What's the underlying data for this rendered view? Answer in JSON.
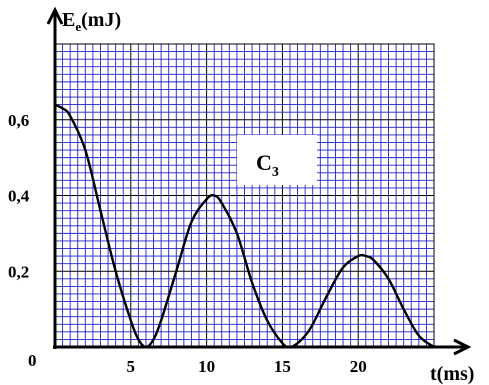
{
  "chart_data": {
    "type": "line",
    "xlabel": "t(ms)",
    "ylabel_main": "E",
    "ylabel_sub": "e",
    "ylabel_unit": "(mJ)",
    "annotation_main": "C",
    "annotation_sub": "3",
    "origin_label": "0",
    "xlim": [
      0,
      25
    ],
    "ylim": [
      0,
      0.8
    ],
    "x_ticks": [
      {
        "value": 5,
        "label": "5"
      },
      {
        "value": 10,
        "label": "10"
      },
      {
        "value": 15,
        "label": "15"
      },
      {
        "value": 20,
        "label": "20"
      }
    ],
    "y_ticks": [
      {
        "value": 0.2,
        "label": "0,2"
      },
      {
        "value": 0.4,
        "label": "0,4"
      },
      {
        "value": 0.6,
        "label": "0,6"
      }
    ],
    "grid": true,
    "series": [
      {
        "x": [
          0,
          0.5,
          1,
          2,
          3,
          4,
          5,
          5.5,
          6,
          6.5,
          7,
          8,
          9,
          10,
          10.5,
          11,
          12,
          13,
          14,
          15,
          15.5,
          16,
          16.5,
          17,
          18,
          19,
          20,
          20.5,
          21,
          22,
          23,
          24,
          25
        ],
        "y": [
          0.64,
          0.63,
          0.61,
          0.52,
          0.36,
          0.2,
          0.07,
          0.02,
          0.0,
          0.02,
          0.07,
          0.2,
          0.33,
          0.39,
          0.4,
          0.38,
          0.3,
          0.17,
          0.07,
          0.01,
          0.0,
          0.01,
          0.03,
          0.06,
          0.14,
          0.21,
          0.24,
          0.24,
          0.23,
          0.18,
          0.1,
          0.03,
          0.0
        ]
      }
    ],
    "colors": {
      "grid_minor": "#2020c8",
      "grid_major": "#000000",
      "curve": "#000000"
    }
  }
}
